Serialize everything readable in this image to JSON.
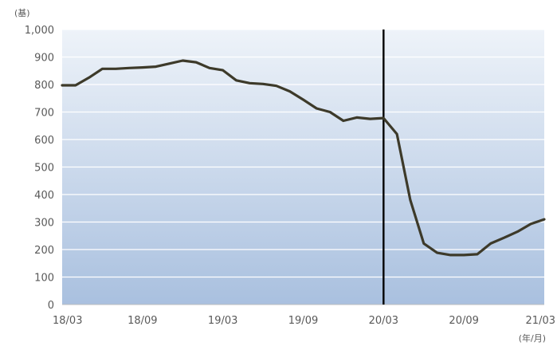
{
  "chart_data": {
    "type": "line",
    "y_unit": "(基)",
    "x_unit": "(年/月)",
    "ylim": [
      0,
      1000
    ],
    "y_ticks": [
      0,
      100,
      200,
      300,
      400,
      500,
      600,
      700,
      800,
      900,
      1000
    ],
    "y_tick_labels": [
      "0",
      "100",
      "200",
      "300",
      "400",
      "500",
      "600",
      "700",
      "800",
      "900",
      "1,000"
    ],
    "x_ticks": [
      0,
      6,
      12,
      18,
      24,
      30,
      36
    ],
    "x_tick_labels": [
      "18/03",
      "18/09",
      "19/03",
      "19/09",
      "20/03",
      "20/09",
      "21/03"
    ],
    "xlim": [
      0,
      36
    ],
    "grid": true,
    "vertical_marker_x": 24,
    "colors": {
      "line": "#3d3a2a",
      "marker": "#000000",
      "grid": "#ffffff",
      "bg_top": "#eef3f9",
      "bg_bottom": "#a9c0df",
      "axis": "#bfbfbf"
    },
    "series": [
      {
        "x": [
          0,
          1,
          2,
          3,
          4,
          5,
          6,
          7,
          8,
          9,
          10,
          11,
          12,
          13,
          14,
          15,
          16,
          17,
          18,
          19,
          20,
          21,
          22,
          23,
          24,
          25,
          26,
          27,
          28,
          29,
          30,
          31,
          32,
          33,
          34,
          35,
          36
        ],
        "values": [
          797,
          797,
          825,
          857,
          857,
          860,
          862,
          865,
          876,
          887,
          881,
          860,
          852,
          815,
          805,
          802,
          795,
          775,
          745,
          713,
          700,
          668,
          680,
          675,
          678,
          620,
          380,
          222,
          188,
          180,
          180,
          183,
          222,
          243,
          265,
          293,
          310
        ]
      }
    ]
  }
}
